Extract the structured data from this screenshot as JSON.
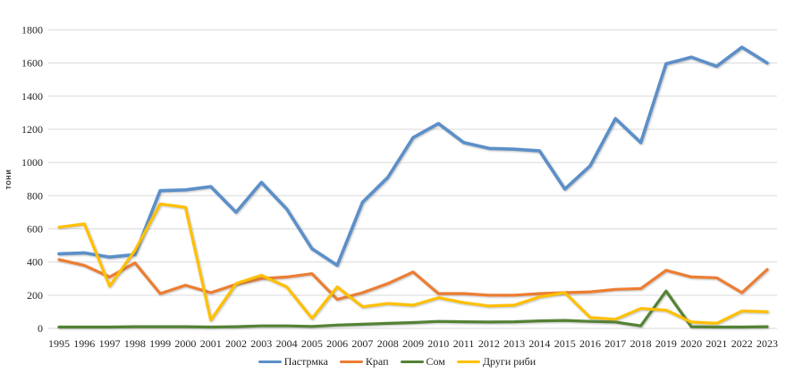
{
  "page": {
    "background": "#ffffff"
  },
  "chart_data": {
    "type": "line",
    "title": "",
    "ylabel": "тони",
    "xlabel": "",
    "ylim": [
      0,
      1800
    ],
    "ytick_step": 200,
    "grid": true,
    "grid_color": "#d9d9d9",
    "text_color": "#262626",
    "legend_position": "bottom",
    "x": [
      1995,
      1996,
      1997,
      1998,
      1999,
      2000,
      2001,
      2002,
      2003,
      2004,
      2005,
      2006,
      2007,
      2008,
      2009,
      2010,
      2011,
      2012,
      2013,
      2014,
      2015,
      2016,
      2017,
      2018,
      2019,
      2020,
      2021,
      2022,
      2023
    ],
    "series": [
      {
        "name": "Пастрмка",
        "color": "#5b8fc9",
        "line_width": 3.6,
        "values": [
          450,
          455,
          430,
          445,
          830,
          835,
          855,
          700,
          880,
          720,
          480,
          380,
          760,
          910,
          1150,
          1235,
          1120,
          1085,
          1080,
          1070,
          840,
          980,
          1265,
          1120,
          1595,
          1635,
          1580,
          1695,
          1600
        ]
      },
      {
        "name": "Крап",
        "color": "#ed7d31",
        "line_width": 3.2,
        "values": [
          415,
          380,
          310,
          395,
          210,
          260,
          215,
          265,
          300,
          310,
          330,
          175,
          215,
          270,
          340,
          210,
          210,
          200,
          200,
          210,
          215,
          220,
          235,
          240,
          350,
          310,
          305,
          215,
          355
        ]
      },
      {
        "name": "Сом",
        "color": "#548235",
        "line_width": 3.2,
        "values": [
          8,
          8,
          8,
          10,
          10,
          10,
          8,
          10,
          15,
          15,
          12,
          20,
          25,
          30,
          35,
          42,
          40,
          38,
          40,
          45,
          48,
          42,
          38,
          15,
          225,
          10,
          8,
          8,
          10
        ]
      },
      {
        "name": "Други риби",
        "color": "#ffc000",
        "line_width": 3.2,
        "values": [
          610,
          630,
          255,
          470,
          750,
          730,
          50,
          270,
          320,
          250,
          60,
          250,
          130,
          150,
          140,
          185,
          155,
          135,
          140,
          190,
          215,
          65,
          55,
          120,
          110,
          38,
          30,
          105,
          100
        ]
      }
    ]
  }
}
